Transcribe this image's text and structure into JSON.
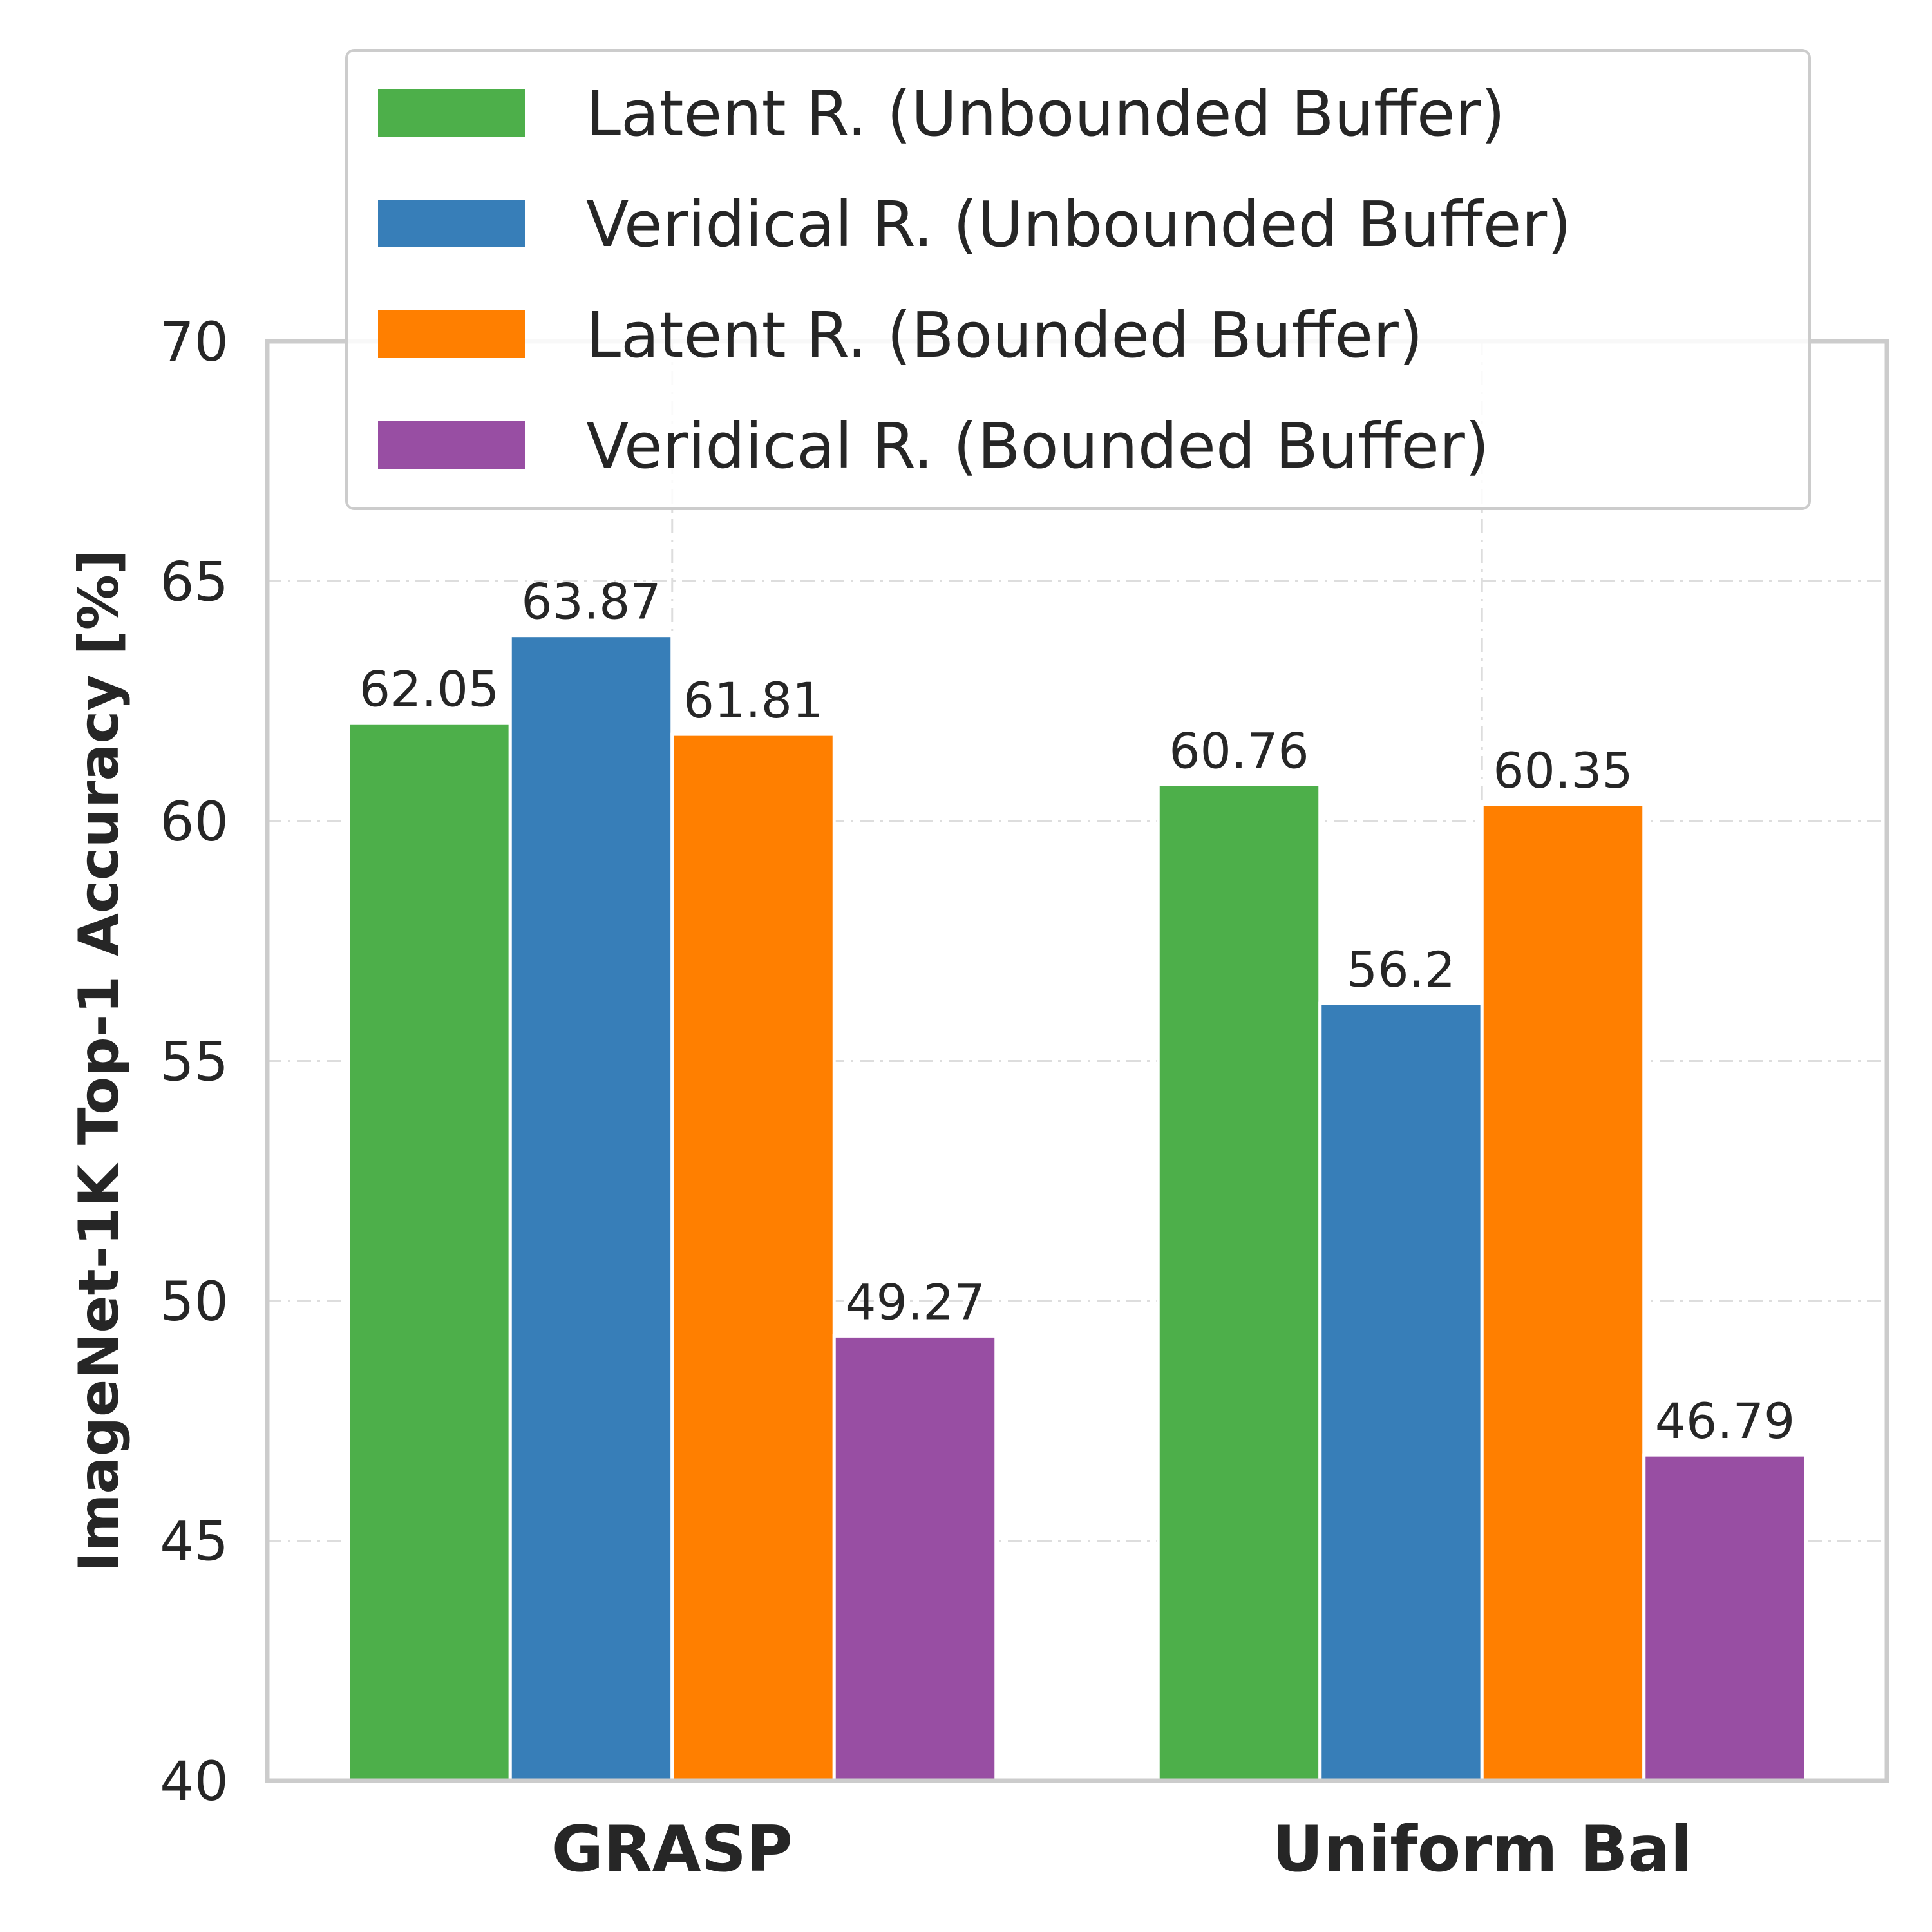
{
  "chart_data": {
    "type": "bar",
    "categories": [
      "GRASP",
      "Uniform Bal"
    ],
    "series": [
      {
        "name": "Latent R. (Unbounded Buffer)",
        "values": [
          62.05,
          60.76
        ],
        "color": "#4daf4a"
      },
      {
        "name": "Veridical R. (Unbounded Buffer)",
        "values": [
          63.87,
          56.2
        ],
        "color": "#377eb8"
      },
      {
        "name": "Latent R. (Bounded Buffer)",
        "values": [
          61.81,
          60.35
        ],
        "color": "#ff7f00"
      },
      {
        "name": "Veridical R. (Bounded Buffer)",
        "values": [
          49.27,
          46.79
        ],
        "color": "#984ea3"
      }
    ],
    "data_labels": [
      [
        "62.05",
        "60.76"
      ],
      [
        "63.87",
        "56.2"
      ],
      [
        "61.81",
        "60.35"
      ],
      [
        "49.27",
        "46.79"
      ]
    ],
    "title": "",
    "xlabel": "",
    "ylabel": "ImageNet-1K  Top-1 Accuracy [%]",
    "ylim": [
      40,
      70
    ],
    "yticks": [
      40,
      45,
      50,
      55,
      60,
      65,
      70
    ],
    "grid": true,
    "legend_position": "top"
  }
}
